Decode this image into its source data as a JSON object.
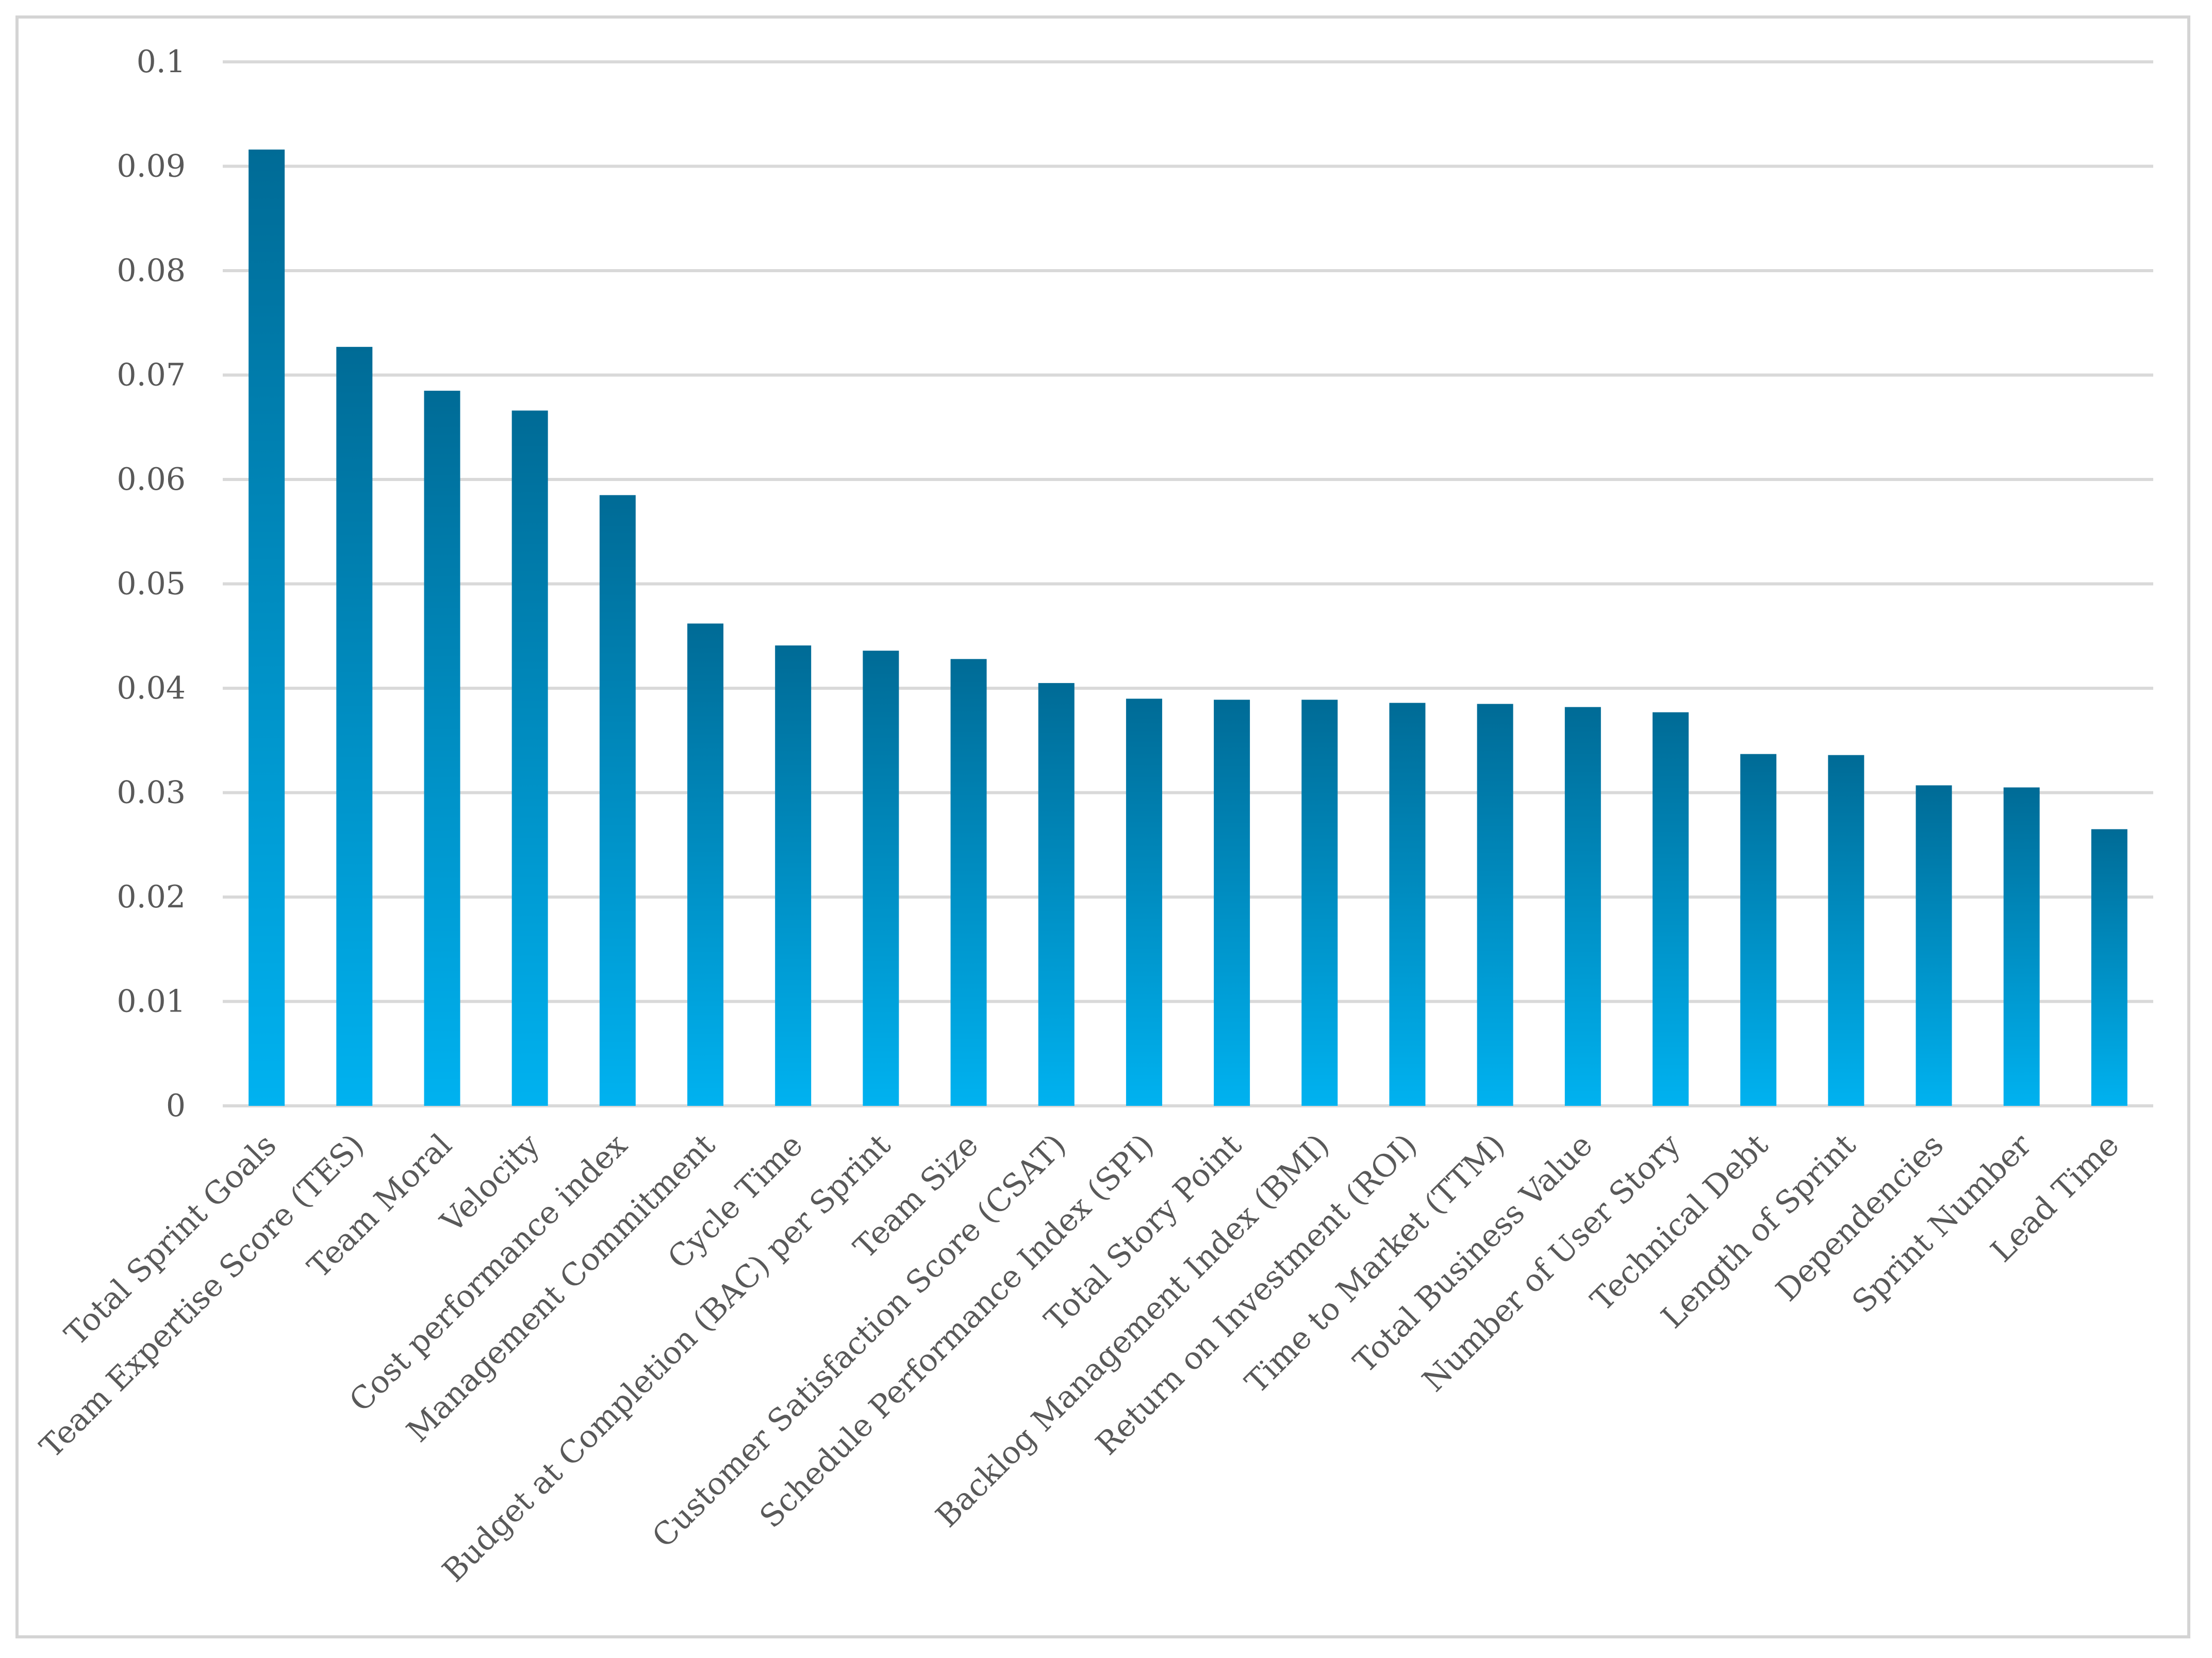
{
  "chart_data": {
    "type": "bar",
    "title": "",
    "xlabel": "",
    "ylabel": "",
    "ylim": [
      0,
      0.1
    ],
    "yticks": [
      "0",
      "0.01",
      "0.02",
      "0.03",
      "0.04",
      "0.05",
      "0.06",
      "0.07",
      "0.08",
      "0.09",
      "0.1"
    ],
    "grid": true,
    "legend": "none",
    "bar_color_top": "#006b96",
    "bar_color_bottom": "#00b2f0",
    "categories": [
      "Total Sprint Goals",
      "Team Expertise Score (TES)",
      "Team Moral",
      "Velocity",
      "Cost performance index",
      "Management Commitment",
      "Cycle Time",
      "Budget at Completion (BAC) per Sprint",
      "Team Size",
      "Customer Satisfaction Score (CSAT)",
      "Schedule Performance Index (SPI)",
      "Total Story Point",
      "Backlog Management Index (BMI)",
      "Return on Investment (ROI)",
      "Time to Market (TTM)",
      "Total Business Value",
      "Number of User Story",
      "Technical Debt",
      "Length of Sprint",
      "Dependencies",
      "Sprint Number",
      "Lead Time"
    ],
    "values": [
      0.0916,
      0.0727,
      0.0685,
      0.0666,
      0.0585,
      0.0462,
      0.0441,
      0.0436,
      0.0428,
      0.0405,
      0.039,
      0.0389,
      0.0389,
      0.0386,
      0.0385,
      0.0382,
      0.0377,
      0.0337,
      0.0336,
      0.0307,
      0.0305,
      0.0265
    ]
  }
}
